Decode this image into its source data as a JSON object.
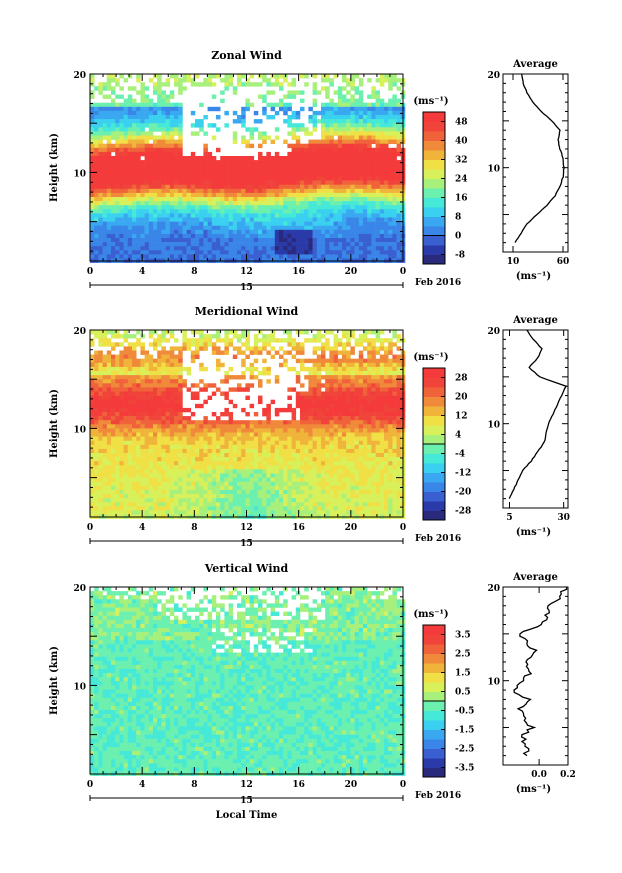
{
  "chart_data": [
    {
      "type": "heatmap",
      "title": "Zonal Wind",
      "ylabel": "Height (km)",
      "x_ticks": [
        "0",
        "4",
        "8",
        "12",
        "16",
        "20",
        "0"
      ],
      "y_ticks": [
        "20",
        "10"
      ],
      "date_day": "15",
      "date_label": "Feb 2016",
      "colorbar_unit": "(ms⁻¹)",
      "colorbar_ticks": [
        "48",
        "40",
        "32",
        "24",
        "16",
        "8",
        "0",
        "-8"
      ],
      "colorbar_range": [
        -12,
        52
      ],
      "colorbar_colors": [
        "#2a2a7c",
        "#2a3aa8",
        "#3a5fd0",
        "#3a86e8",
        "#3aa8f0",
        "#3ad0f0",
        "#46e8d8",
        "#6cf0b0",
        "#a8f07c",
        "#d8f05a",
        "#f0e046",
        "#f0b43a",
        "#f08a3a",
        "#f0623a",
        "#f0443a",
        "#f43a3a"
      ],
      "avg_title": "Average",
      "avg_xticks": [
        "10",
        "60"
      ],
      "avg_xlim": [
        0,
        65
      ],
      "avg_unit": "(ms⁻¹)",
      "avg_profile_height_km": [
        2,
        3,
        4,
        5,
        6,
        7,
        8,
        9,
        10,
        11,
        12,
        13,
        14,
        15,
        16,
        17,
        18,
        19,
        20
      ],
      "avg_profile_value": [
        12,
        18,
        24,
        34,
        44,
        52,
        57,
        60,
        61,
        60,
        57,
        55,
        57,
        49,
        38,
        30,
        24,
        20,
        19
      ]
    },
    {
      "type": "heatmap",
      "title": "Meridional Wind",
      "ylabel": "Height (km)",
      "x_ticks": [
        "0",
        "4",
        "8",
        "12",
        "16",
        "20",
        "0"
      ],
      "y_ticks": [
        "20",
        "10"
      ],
      "date_day": "15",
      "date_label": "Feb 2016",
      "colorbar_unit": "(ms⁻¹)",
      "colorbar_ticks": [
        "28",
        "20",
        "12",
        "4",
        "-4",
        "-12",
        "-20",
        "-28"
      ],
      "colorbar_range": [
        -32,
        32
      ],
      "colorbar_colors": [
        "#2a2a7c",
        "#2a3aa8",
        "#3a5fd0",
        "#3a86e8",
        "#3aa8f0",
        "#3ad0f0",
        "#46e8d8",
        "#6cf0b0",
        "#a8f07c",
        "#d8f05a",
        "#f0e046",
        "#f0b43a",
        "#f08a3a",
        "#f0623a",
        "#f0443a",
        "#f43a3a"
      ],
      "avg_title": "Average",
      "avg_xticks": [
        "5",
        "30"
      ],
      "avg_xlim": [
        2,
        32
      ],
      "avg_unit": "(ms⁻¹)",
      "avg_profile_height_km": [
        2,
        3,
        4,
        5,
        6,
        7,
        8,
        9,
        10,
        11,
        12,
        13,
        14,
        15,
        16,
        17,
        18,
        19,
        20
      ],
      "avg_profile_value": [
        5,
        7,
        9,
        11,
        15,
        18,
        21,
        22,
        23,
        25,
        27,
        29,
        31,
        19,
        14,
        18,
        20,
        16,
        13
      ]
    },
    {
      "type": "heatmap",
      "title": "Vertical Wind",
      "ylabel": "Height (km)",
      "xlabel": "Local Time",
      "x_ticks": [
        "0",
        "4",
        "8",
        "12",
        "16",
        "20",
        "0"
      ],
      "y_ticks": [
        "20",
        "10"
      ],
      "date_day": "15",
      "date_label": "Feb 2016",
      "colorbar_unit": "(ms⁻¹)",
      "colorbar_ticks": [
        "3.5",
        "2.5",
        "1.5",
        "0.5",
        "-0.5",
        "-1.5",
        "-2.5",
        "-3.5"
      ],
      "colorbar_range": [
        -4,
        4
      ],
      "colorbar_colors": [
        "#2a2a7c",
        "#2a3aa8",
        "#3a5fd0",
        "#3a86e8",
        "#3aa8f0",
        "#3ad0f0",
        "#46e8d8",
        "#6cf0b0",
        "#a8f07c",
        "#d8f05a",
        "#f0e046",
        "#f0b43a",
        "#f08a3a",
        "#f0623a",
        "#f0443a",
        "#f43a3a"
      ],
      "avg_title": "Average",
      "avg_xticks": [
        "0.0",
        "0.2"
      ],
      "avg_xlim": [
        -0.25,
        0.2
      ],
      "avg_unit": "(ms⁻¹)",
      "avg_profile_height_km": [
        2,
        3,
        4,
        5,
        6,
        7,
        8,
        9,
        10,
        11,
        12,
        13,
        14,
        15,
        16,
        17,
        18,
        19,
        20
      ],
      "avg_profile_value": [
        -0.1,
        -0.08,
        -0.12,
        -0.05,
        -0.1,
        -0.14,
        -0.08,
        -0.18,
        -0.12,
        -0.05,
        -0.1,
        -0.02,
        -0.08,
        -0.15,
        0.02,
        0.05,
        0.08,
        0.15,
        0.18
      ]
    }
  ]
}
